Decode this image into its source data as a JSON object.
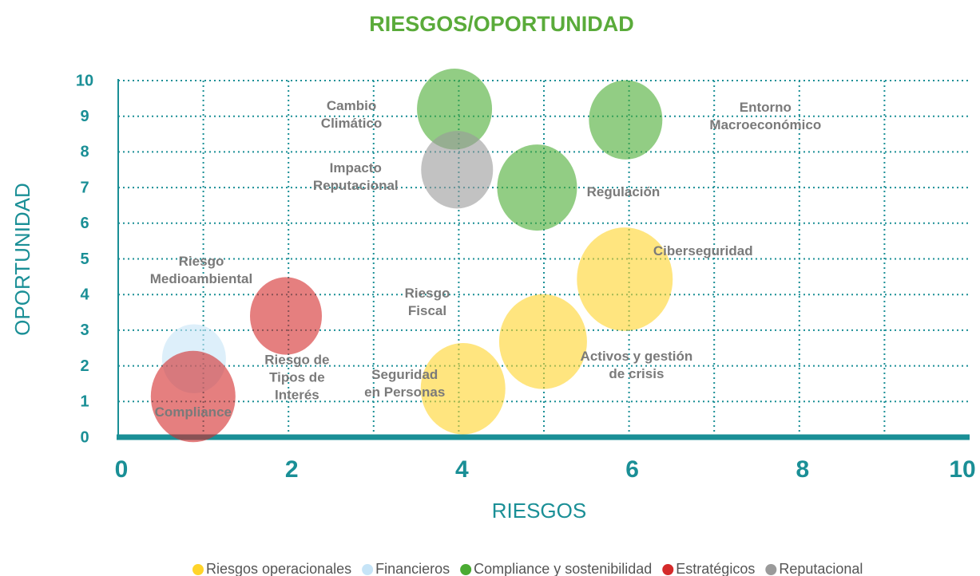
{
  "chart_data": {
    "type": "bubble",
    "title": "RIESGOS/OPORTUNIDAD",
    "x_label": "RIESGOS",
    "y_label": "OPORTUNIDAD",
    "xlim": [
      0,
      10
    ],
    "ylim": [
      0,
      10
    ],
    "xticks": [
      0,
      2,
      4,
      6,
      8,
      10
    ],
    "yticks": [
      0,
      1,
      2,
      3,
      4,
      5,
      6,
      7,
      8,
      9,
      10
    ],
    "xgridlines": [
      1,
      2,
      3,
      4,
      5,
      6,
      7,
      8,
      9
    ],
    "grid": true,
    "legend": "bottom",
    "series": [
      {
        "name": "Riesgos operacionales",
        "color": "#ffd42a",
        "x": [
          5.95,
          4.99,
          4.05
        ],
        "values": [
          4.43,
          2.68,
          1.36
        ],
        "sizes": [
          12,
          11,
          10.6
        ],
        "labels": [
          [
            "Ciberseguridad"
          ],
          [
            "Activos y gestión",
            "de crisis"
          ],
          [
            "Seguridad",
            "en Personas"
          ]
        ]
      },
      {
        "name": "Financieros",
        "color": "#c6e4f7",
        "x": [
          0.89
        ],
        "values": [
          2.2
        ],
        "sizes": [
          8
        ],
        "labels": [
          [
            "Riesgo de",
            "Tipos de",
            "Interés"
          ]
        ]
      },
      {
        "name": "Compliance y sostenibilidad",
        "color": "#4aab32",
        "x": [
          3.95,
          5.96,
          4.92
        ],
        "values": [
          9.2,
          8.9,
          7.0
        ],
        "sizes": [
          9.4,
          9.2,
          10
        ],
        "labels": [
          [
            "Cambio",
            "Climático"
          ],
          [
            "Entorno",
            "Macroeconómico"
          ],
          [
            "Regulación"
          ]
        ]
      },
      {
        "name": "Estratégicos",
        "color": "#d42a2a",
        "x": [
          1.97,
          0.88
        ],
        "values": [
          3.4,
          1.14
        ],
        "sizes": [
          9,
          10.6
        ],
        "labels": [
          [
            "Riesgo",
            "Medioambiental"
          ],
          [
            "Compliance"
          ]
        ]
      },
      {
        "name": "Reputacional",
        "color": "#9a9a9a",
        "x": [
          3.98
        ],
        "values": [
          7.5
        ],
        "sizes": [
          9
        ],
        "labels": [
          [
            "Impacto",
            "Reputacional"
          ]
        ]
      }
    ],
    "annotations": [
      [
        "Riesgo",
        "Fiscal"
      ]
    ]
  }
}
